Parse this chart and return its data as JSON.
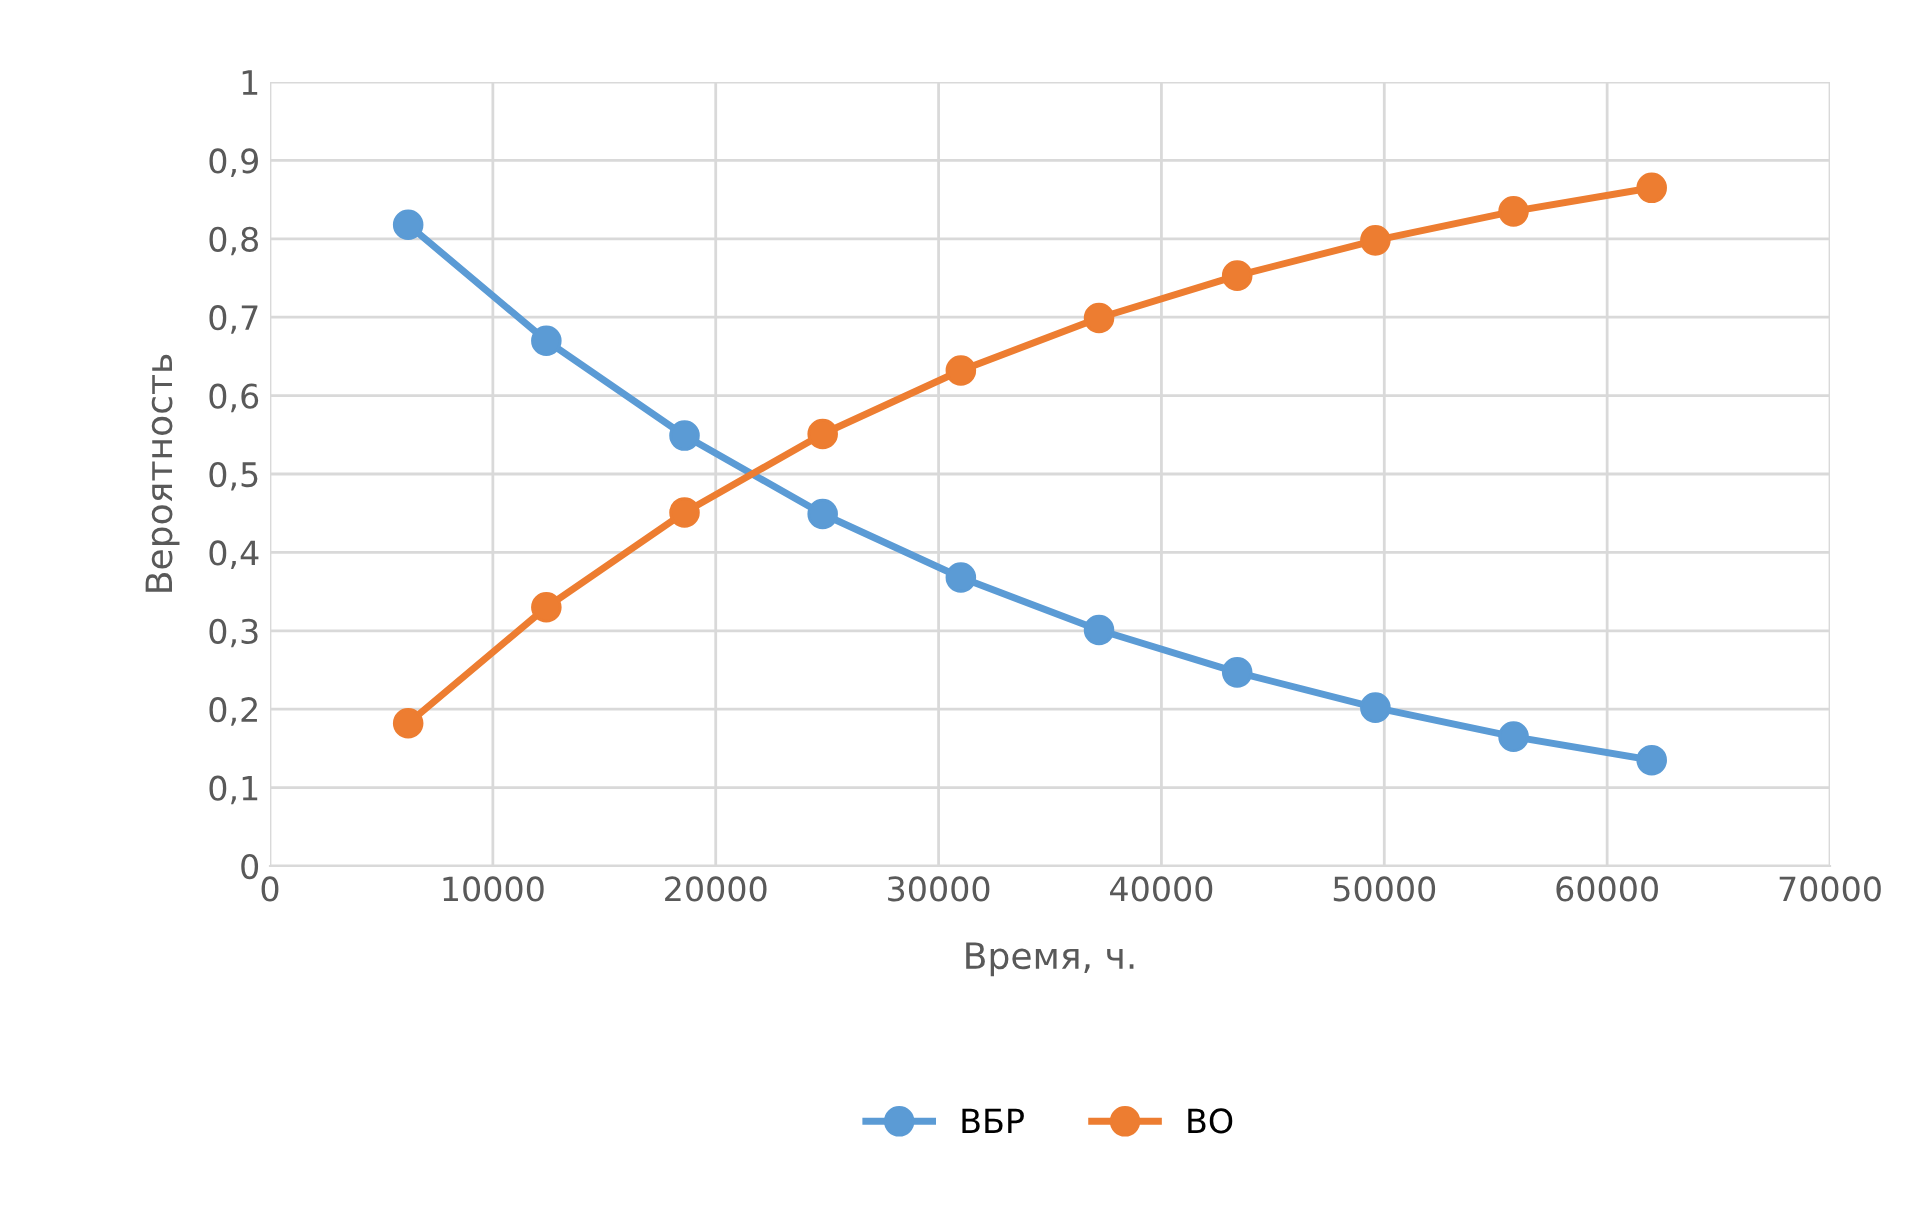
{
  "chart_data": {
    "type": "line",
    "xlabel": "Время, ч.",
    "ylabel": "Вероятность",
    "x": [
      6200,
      12400,
      18600,
      24800,
      31000,
      37200,
      43400,
      49600,
      55800,
      62000
    ],
    "series": [
      {
        "name": "ВБР",
        "color": "#5b9bd5",
        "values": [
          0.818,
          0.67,
          0.549,
          0.449,
          0.368,
          0.301,
          0.247,
          0.202,
          0.165,
          0.135
        ]
      },
      {
        "name": "ВО",
        "color": "#ed7d31",
        "values": [
          0.182,
          0.33,
          0.451,
          0.551,
          0.632,
          0.699,
          0.753,
          0.798,
          0.835,
          0.865
        ]
      }
    ],
    "xlim": [
      0,
      70000
    ],
    "xticks": [
      0,
      10000,
      20000,
      30000,
      40000,
      50000,
      60000,
      70000
    ],
    "ylim": [
      0,
      1
    ],
    "yticks": [
      0,
      {
        "value": 0.1,
        "label": "0,1"
      },
      {
        "value": 0.2,
        "label": "0,2"
      },
      {
        "value": 0.3,
        "label": "0,3"
      },
      {
        "value": 0.4,
        "label": "0,4"
      },
      {
        "value": 0.5,
        "label": "0,5"
      },
      {
        "value": 0.6,
        "label": "0,6"
      },
      {
        "value": 0.7,
        "label": "0,7"
      },
      {
        "value": 0.8,
        "label": "0,8"
      },
      {
        "value": 0.9,
        "label": "0,9"
      },
      1
    ],
    "grid": true,
    "legend": "bottom",
    "marker": "circle",
    "line_style": "solid"
  }
}
